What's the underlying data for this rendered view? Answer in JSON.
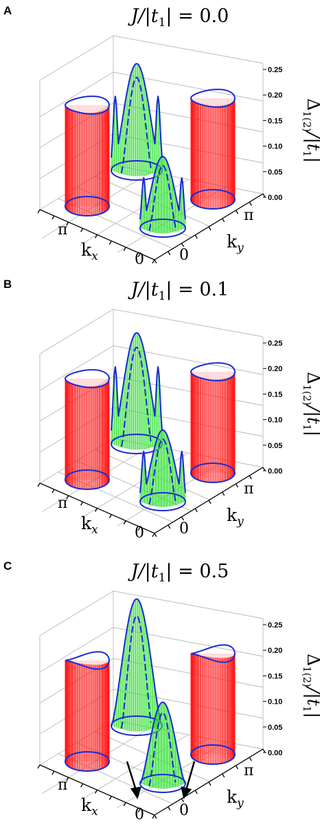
{
  "chart_data": [
    {
      "panel": "A",
      "type": "surface3d",
      "title": "J/|t1| = 0.0",
      "xlabel": "kx",
      "ylabel": "ky",
      "zlabel": "Δ1(2)/|t1|",
      "x_ticks": [
        "π",
        "0"
      ],
      "y_ticks": [
        "π",
        "0"
      ],
      "z_ticks": [
        "0.25",
        "0.20",
        "0.15",
        "0.10",
        "0.05",
        "0.00"
      ],
      "zlim": [
        0,
        0.27
      ],
      "series": [
        {
          "color": "#ff0000",
          "kind": "red-cylinder-left",
          "height": 0.21
        },
        {
          "color": "#ff0000",
          "kind": "red-cylinder-right",
          "height": 0.21
        },
        {
          "color": "#22dd22",
          "kind": "green-dome-back",
          "peak": 0.26,
          "lobes": 3
        },
        {
          "color": "#22dd22",
          "kind": "green-dome-front",
          "peak": 0.16,
          "lobes": 3
        }
      ],
      "arrows": false
    },
    {
      "panel": "B",
      "type": "surface3d",
      "title": "J/|t1| = 0.1",
      "xlabel": "kx",
      "ylabel": "ky",
      "zlabel": "Δ1(2)/|t1|",
      "x_ticks": [
        "π",
        "0"
      ],
      "y_ticks": [
        "π",
        "0"
      ],
      "z_ticks": [
        "0.25",
        "0.20",
        "0.15",
        "0.10",
        "0.05",
        "0.00"
      ],
      "zlim": [
        0,
        0.27
      ],
      "series": [
        {
          "color": "#ff0000",
          "kind": "red-cylinder-left",
          "height": 0.21
        },
        {
          "color": "#ff0000",
          "kind": "red-cylinder-right",
          "height": 0.21
        },
        {
          "color": "#22dd22",
          "kind": "green-dome-back",
          "peak": 0.27,
          "lobes": 3
        },
        {
          "color": "#22dd22",
          "kind": "green-dome-front",
          "peak": 0.16,
          "lobes": 3
        }
      ],
      "arrows": false
    },
    {
      "panel": "C",
      "type": "surface3d",
      "title": "J/|t1| = 0.5",
      "xlabel": "kx",
      "ylabel": "ky",
      "zlabel": "Δ1(2)/|t1|",
      "x_ticks": [
        "π",
        "0"
      ],
      "y_ticks": [
        "π",
        "0"
      ],
      "z_ticks": [
        "0.25",
        "0.20",
        "0.15",
        "0.10",
        "0.05",
        "0.00"
      ],
      "zlim": [
        0,
        0.27
      ],
      "series": [
        {
          "color": "#ff0000",
          "kind": "red-cylinder-left",
          "height": 0.21
        },
        {
          "color": "#ff0000",
          "kind": "red-cylinder-right",
          "height": 0.21
        },
        {
          "color": "#22dd22",
          "kind": "green-dome-back",
          "peak": 0.29,
          "lobes": 2
        },
        {
          "color": "#22dd22",
          "kind": "green-dome-front",
          "peak": 0.18,
          "lobes": 2
        }
      ],
      "arrows": true
    }
  ],
  "colors": {
    "red": "#ff1a1a",
    "green": "#33e033",
    "blue": "#1a2ad6",
    "grid": "#bdbdbd"
  }
}
